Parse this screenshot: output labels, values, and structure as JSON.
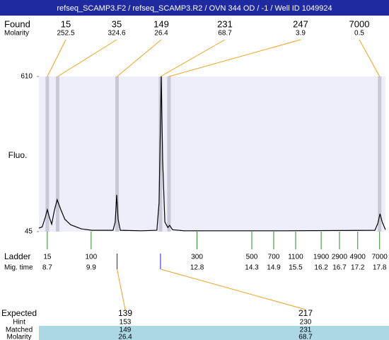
{
  "title": "refseq_SCAMP3.F2 / refseq_SCAMP3.R2 / OVN 344 OD / -1 / Well ID 1049924",
  "found": {
    "label": "Found",
    "molarity_label": "Molarity",
    "sizes": [
      15,
      35,
      149,
      231,
      247,
      7000
    ],
    "molarities": [
      252.5,
      324.6,
      26.4,
      68.7,
      3.9,
      0.5
    ]
  },
  "chart_data": {
    "type": "line",
    "y_label": "Fluo.",
    "x": [
      8.47,
      8.56,
      8.64,
      8.7,
      8.76,
      8.82,
      8.89,
      8.97,
      9.07,
      9.18,
      9.34,
      9.63,
      9.92,
      10.5,
      10.56,
      10.6,
      10.64,
      10.7,
      11.28,
      11.7,
      11.76,
      11.82,
      11.86,
      11.92,
      12.0,
      12.05,
      12.13,
      12.44,
      15.15,
      17.67,
      17.75,
      17.81,
      17.87,
      17.96
    ],
    "series": [
      {
        "color": "#000000",
        "values": [
          58,
          62,
          95,
          125,
          95,
          72,
          120,
          161,
          125,
          90,
          70,
          55,
          50,
          50,
          80,
          179,
          90,
          50,
          48,
          50,
          150,
          610,
          300,
          80,
          60,
          68,
          52,
          48,
          48,
          50,
          75,
          110,
          80,
          52
        ]
      }
    ],
    "xlim": [
      8.47,
      17.96
    ],
    "ylim": [
      45,
      610
    ],
    "yticks": [
      45,
      610
    ]
  },
  "ladder": {
    "label": "Ladder",
    "time_label": "Mig. time",
    "sizes": [
      15,
      100,
      300,
      500,
      700,
      1100,
      1900,
      2900,
      4900,
      7000
    ],
    "times": [
      8.7,
      9.9,
      12.8,
      14.3,
      14.9,
      15.5,
      16.2,
      16.7,
      17.2,
      17.8
    ]
  },
  "expected": {
    "label": "Expected",
    "hint_label": "Hint",
    "matched_label": "Matched",
    "molarity_label": "Molarity",
    "sizes": [
      139,
      217
    ],
    "hints": [
      153,
      230
    ],
    "matched": [
      149,
      231
    ],
    "molarities": [
      26.4,
      68.7
    ]
  }
}
